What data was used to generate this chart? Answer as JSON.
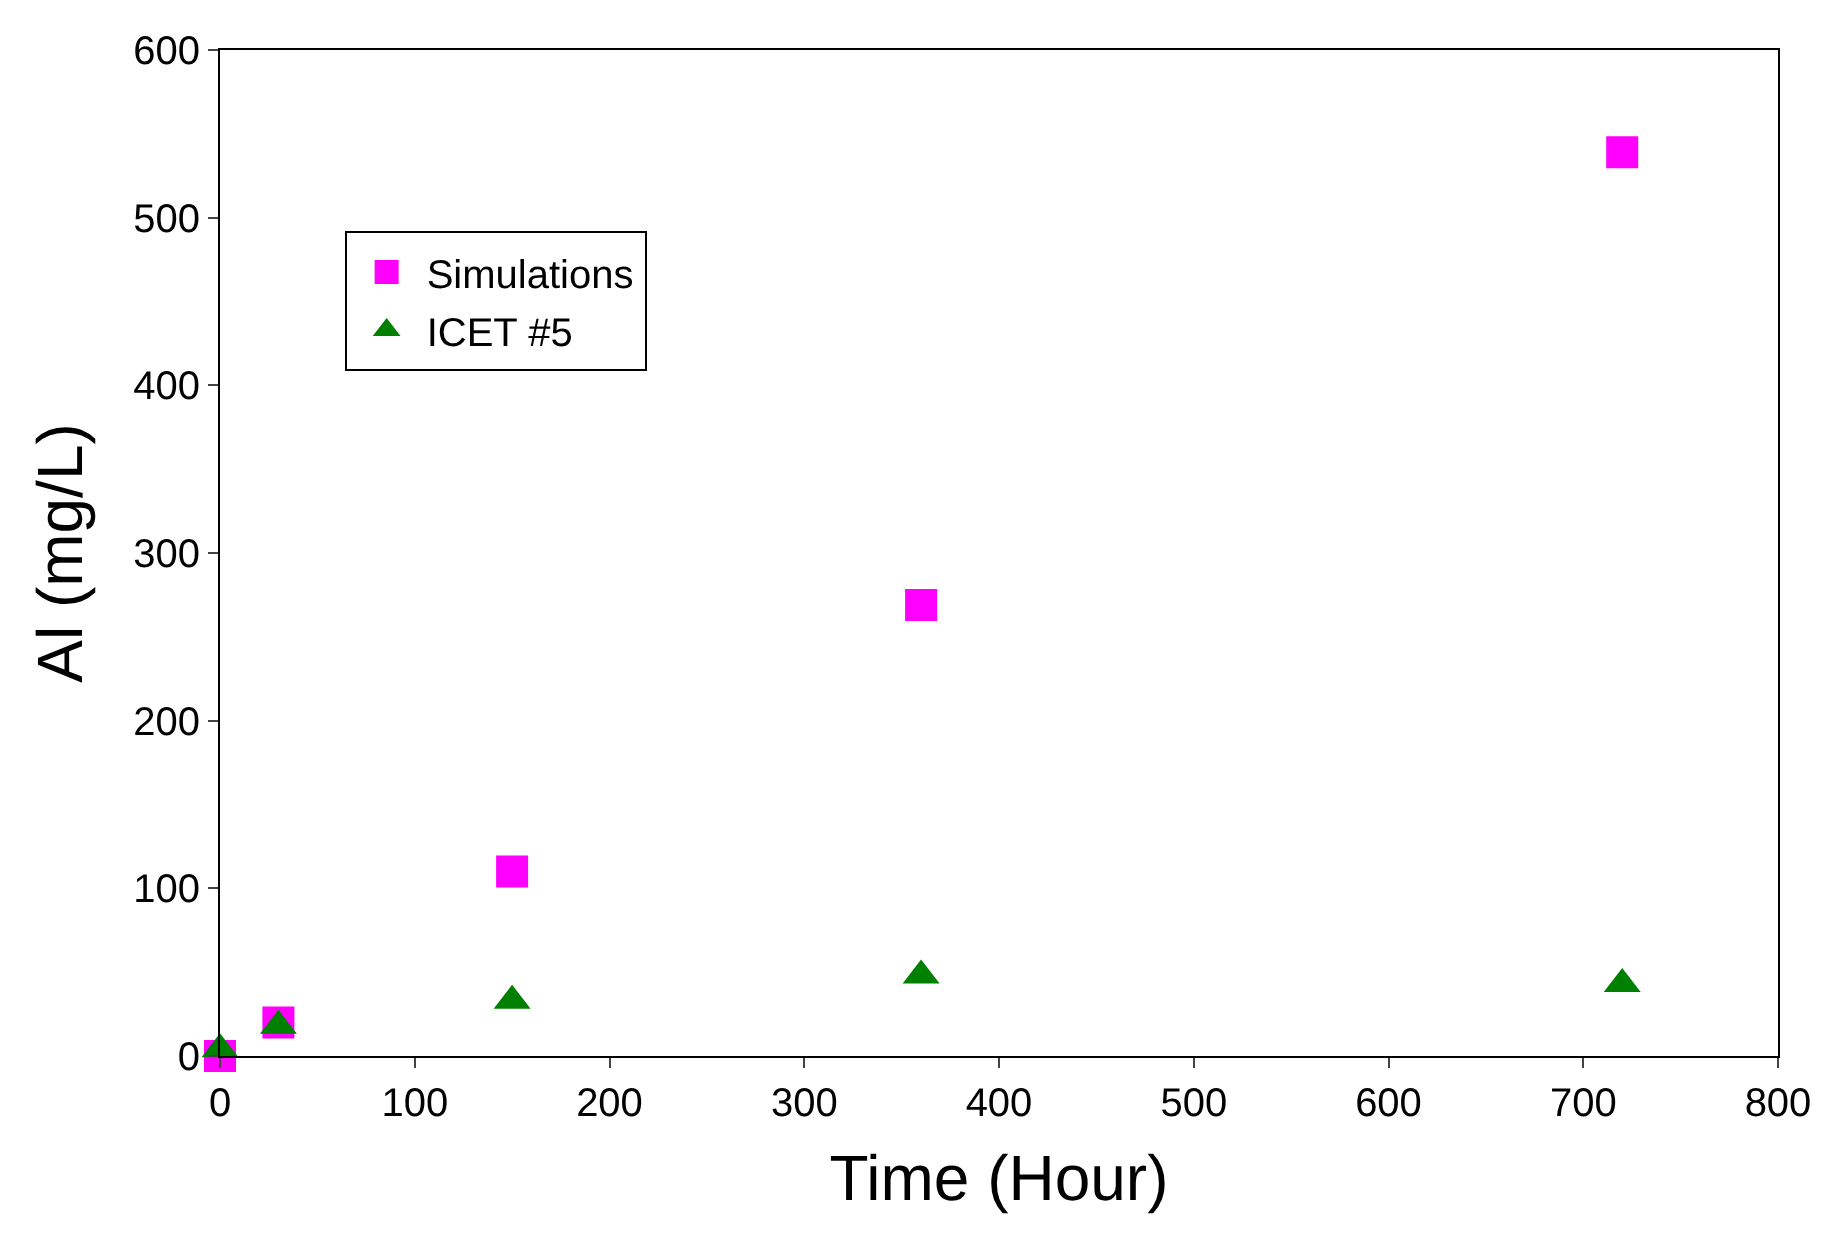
{
  "chart_data": {
    "type": "scatter",
    "xlabel": "Time (Hour)",
    "ylabel": "Al (mg/L)",
    "xlim": [
      0,
      800
    ],
    "xticks": [
      0,
      100,
      200,
      300,
      400,
      500,
      600,
      700,
      800
    ],
    "ylim": [
      0,
      600
    ],
    "yticks": [
      0,
      100,
      200,
      300,
      400,
      500,
      600
    ],
    "legend": "top left",
    "series": [
      {
        "name": "Simulations",
        "color": "#ff00ff",
        "marker": "square",
        "x": [
          0,
          30,
          150,
          360,
          720
        ],
        "values": [
          0,
          20,
          110,
          269,
          539
        ]
      },
      {
        "name": "ICET #5",
        "color": "#008000",
        "marker": "triangle",
        "x": [
          0,
          30,
          150,
          360,
          720
        ],
        "values": [
          4,
          18,
          33,
          48,
          43
        ]
      }
    ]
  }
}
